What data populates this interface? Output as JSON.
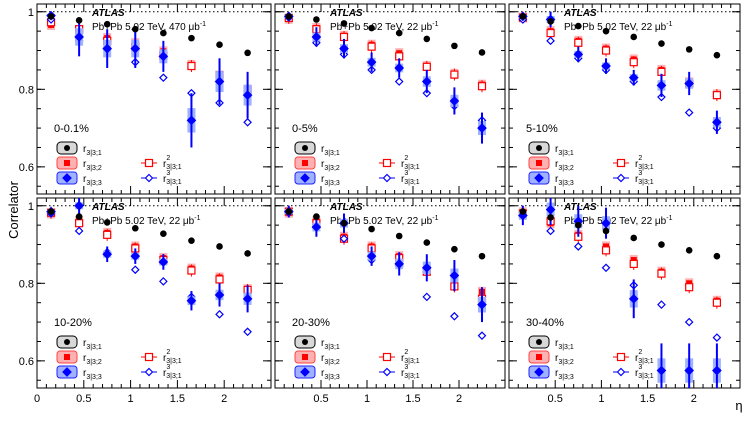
{
  "figure": {
    "ylabel": "Correlator",
    "xlabel": "η",
    "x_ticks": [
      "0",
      "0.5",
      "1",
      "1.5",
      "2"
    ],
    "y_ticks": [
      "0.6",
      "0.8",
      "1"
    ],
    "legend": [
      {
        "key": "r331",
        "base": "r",
        "sub": "3|3;1",
        "sup": ""
      },
      {
        "key": "r332",
        "base": "r",
        "sub": "3|3;2",
        "sup": ""
      },
      {
        "key": "r333",
        "base": "r",
        "sub": "3|3;3",
        "sup": ""
      },
      {
        "key": "r2",
        "base": "r",
        "sub": "3|3;1",
        "sup": "2"
      },
      {
        "key": "r3",
        "base": "r",
        "sub": "3|3;1",
        "sup": "3"
      }
    ],
    "colors": {
      "r331": "#000000",
      "r332": "#ff0000",
      "r333": "#0000ff",
      "band_red": "#ffb0b0",
      "band_blue": "#9fb2ff",
      "refline": "#000000"
    }
  },
  "chart_data": [
    {
      "type": "scatter",
      "atlas": "ATLAS",
      "system": "Pb+Pb 5.02 TeV, 470 μb",
      "system_sup": "-1",
      "centrality": "0-0.1%",
      "xlim": [
        0,
        2.5
      ],
      "ylim": [
        0.53,
        1.02
      ],
      "x": [
        0.15,
        0.45,
        0.75,
        1.05,
        1.35,
        1.65,
        1.95,
        2.25
      ],
      "series": [
        {
          "key": "r331",
          "values": [
            0.988,
            0.978,
            0.968,
            0.955,
            0.945,
            0.932,
            0.915,
            0.894
          ]
        },
        {
          "key": "r332",
          "values": [
            0.966,
            0.953,
            0.932,
            0.919,
            0.898,
            0.863,
            0.827,
            0.79
          ]
        },
        {
          "key": "r333",
          "values": [
            0.99,
            0.935,
            0.905,
            0.905,
            0.885,
            0.72,
            0.82,
            0.785
          ]
        },
        {
          "key": "r2",
          "values": [
            0.973,
            0.955,
            0.925,
            0.91,
            0.887,
            0.86,
            0.837,
            0.8
          ]
        },
        {
          "key": "r3",
          "values": [
            0.98,
            0.925,
            0.905,
            0.87,
            0.83,
            0.79,
            0.765,
            0.715
          ]
        }
      ],
      "r333_errors": [
        0.01,
        0.05,
        0.05,
        0.05,
        0.04,
        0.07,
        0.06,
        0.06
      ]
    },
    {
      "type": "scatter",
      "atlas": "ATLAS",
      "system": "Pb+Pb 5.02 TeV, 22 μb",
      "system_sup": "-1",
      "centrality": "0-5%",
      "xlim": [
        0,
        2.5
      ],
      "ylim": [
        0.53,
        1.02
      ],
      "x": [
        0.15,
        0.45,
        0.75,
        1.05,
        1.35,
        1.65,
        1.95,
        2.25
      ],
      "series": [
        {
          "key": "r331",
          "values": [
            0.988,
            0.98,
            0.97,
            0.958,
            0.945,
            0.93,
            0.912,
            0.895
          ]
        },
        {
          "key": "r332",
          "values": [
            0.982,
            0.958,
            0.938,
            0.915,
            0.893,
            0.86,
            0.84,
            0.812
          ]
        },
        {
          "key": "r333",
          "values": [
            0.988,
            0.935,
            0.905,
            0.87,
            0.855,
            0.82,
            0.77,
            0.7
          ]
        },
        {
          "key": "r2",
          "values": [
            0.984,
            0.955,
            0.935,
            0.91,
            0.885,
            0.858,
            0.838,
            0.808
          ]
        },
        {
          "key": "r3",
          "values": [
            0.985,
            0.92,
            0.89,
            0.85,
            0.82,
            0.79,
            0.757,
            0.72
          ]
        }
      ],
      "r333_errors": [
        0.01,
        0.025,
        0.025,
        0.025,
        0.025,
        0.03,
        0.035,
        0.04
      ]
    },
    {
      "type": "scatter",
      "atlas": "ATLAS",
      "system": "Pb+Pb 5.02 TeV, 22 μb",
      "system_sup": "-1",
      "centrality": "5-10%",
      "xlim": [
        0,
        2.5
      ],
      "ylim": [
        0.53,
        1.02
      ],
      "x": [
        0.15,
        0.45,
        0.75,
        1.05,
        1.35,
        1.65,
        1.95,
        2.25
      ],
      "series": [
        {
          "key": "r331",
          "values": [
            0.988,
            0.975,
            0.963,
            0.95,
            0.935,
            0.918,
            0.903,
            0.888
          ]
        },
        {
          "key": "r332",
          "values": [
            0.985,
            0.95,
            0.925,
            0.905,
            0.877,
            0.85,
            0.818,
            0.787
          ]
        },
        {
          "key": "r333",
          "values": [
            0.988,
            0.98,
            0.89,
            0.86,
            0.83,
            0.81,
            0.815,
            0.715
          ]
        },
        {
          "key": "r2",
          "values": [
            0.985,
            0.945,
            0.92,
            0.9,
            0.87,
            0.845,
            0.815,
            0.785
          ]
        },
        {
          "key": "r3",
          "values": [
            0.98,
            0.925,
            0.88,
            0.85,
            0.82,
            0.78,
            0.74,
            0.7
          ]
        }
      ],
      "r333_errors": [
        0.01,
        0.02,
        0.02,
        0.02,
        0.02,
        0.03,
        0.03,
        0.03
      ]
    },
    {
      "type": "scatter",
      "atlas": "ATLAS",
      "system": "Pb+Pb 5.02 TeV, 22 μb",
      "system_sup": "-1",
      "centrality": "10-20%",
      "xlim": [
        0,
        2.5
      ],
      "ylim": [
        0.53,
        1.02
      ],
      "x": [
        0.15,
        0.45,
        0.75,
        1.05,
        1.35,
        1.65,
        1.95,
        2.25
      ],
      "series": [
        {
          "key": "r331",
          "values": [
            0.985,
            0.972,
            0.957,
            0.942,
            0.928,
            0.91,
            0.895,
            0.877
          ]
        },
        {
          "key": "r332",
          "values": [
            0.98,
            0.96,
            0.93,
            0.895,
            0.865,
            0.838,
            0.815,
            0.785
          ]
        },
        {
          "key": "r333",
          "values": [
            0.985,
            1.0,
            0.875,
            0.87,
            0.855,
            0.755,
            0.77,
            0.76
          ]
        },
        {
          "key": "r2",
          "values": [
            0.982,
            0.955,
            0.925,
            0.89,
            0.86,
            0.833,
            0.81,
            0.783
          ]
        },
        {
          "key": "r3",
          "values": [
            0.98,
            0.935,
            0.88,
            0.835,
            0.805,
            0.765,
            0.72,
            0.675
          ]
        }
      ],
      "r333_errors": [
        0.01,
        0.02,
        0.02,
        0.02,
        0.02,
        0.025,
        0.03,
        0.035
      ]
    },
    {
      "type": "scatter",
      "atlas": "ATLAS",
      "system": "Pb+Pb 5.02 TeV, 22 μb",
      "system_sup": "-1",
      "centrality": "20-30%",
      "xlim": [
        0,
        2.5
      ],
      "ylim": [
        0.53,
        1.02
      ],
      "x": [
        0.15,
        0.45,
        0.75,
        1.05,
        1.35,
        1.65,
        1.95,
        2.25
      ],
      "series": [
        {
          "key": "r331",
          "values": [
            0.985,
            0.972,
            0.955,
            0.94,
            0.922,
            0.905,
            0.888,
            0.87
          ]
        },
        {
          "key": "r332",
          "values": [
            0.982,
            0.96,
            0.92,
            0.895,
            0.87,
            0.832,
            0.795,
            0.778
          ]
        },
        {
          "key": "r333",
          "values": [
            0.985,
            0.945,
            0.955,
            0.87,
            0.85,
            0.84,
            0.82,
            0.745
          ]
        },
        {
          "key": "r2",
          "values": [
            0.985,
            0.955,
            0.915,
            0.89,
            0.865,
            0.83,
            0.792,
            0.76
          ]
        },
        {
          "key": "r3",
          "values": [
            0.982,
            0.945,
            0.915,
            0.86,
            0.845,
            0.765,
            0.715,
            0.665
          ]
        }
      ],
      "r333_errors": [
        0.015,
        0.025,
        0.025,
        0.025,
        0.03,
        0.035,
        0.04,
        0.045
      ]
    },
    {
      "type": "scatter",
      "atlas": "ATLAS",
      "system": "Pb+Pb 5.02 TeV, 22 μb",
      "system_sup": "-1",
      "centrality": "30-40%",
      "xlim": [
        0,
        2.5
      ],
      "ylim": [
        0.53,
        1.02
      ],
      "x": [
        0.15,
        0.45,
        0.75,
        1.05,
        1.35,
        1.65,
        1.95,
        2.25
      ],
      "series": [
        {
          "key": "r331",
          "values": [
            0.985,
            0.97,
            0.95,
            0.935,
            0.917,
            0.9,
            0.885,
            0.87
          ]
        },
        {
          "key": "r332",
          "values": [
            0.983,
            0.955,
            0.925,
            0.895,
            0.86,
            0.83,
            0.8,
            0.755
          ]
        },
        {
          "key": "r333",
          "values": [
            0.975,
            0.99,
            0.96,
            0.955,
            0.76,
            0.575,
            0.575,
            0.575
          ]
        },
        {
          "key": "r2",
          "values": [
            0.98,
            0.96,
            0.92,
            0.885,
            0.85,
            0.825,
            0.79,
            0.75
          ]
        },
        {
          "key": "r3",
          "values": [
            0.975,
            0.935,
            0.895,
            0.84,
            0.795,
            0.745,
            0.7,
            0.66
          ]
        }
      ],
      "r333_errors": [
        0.025,
        0.04,
        0.04,
        0.04,
        0.05,
        0.07,
        0.07,
        0.07
      ]
    }
  ]
}
